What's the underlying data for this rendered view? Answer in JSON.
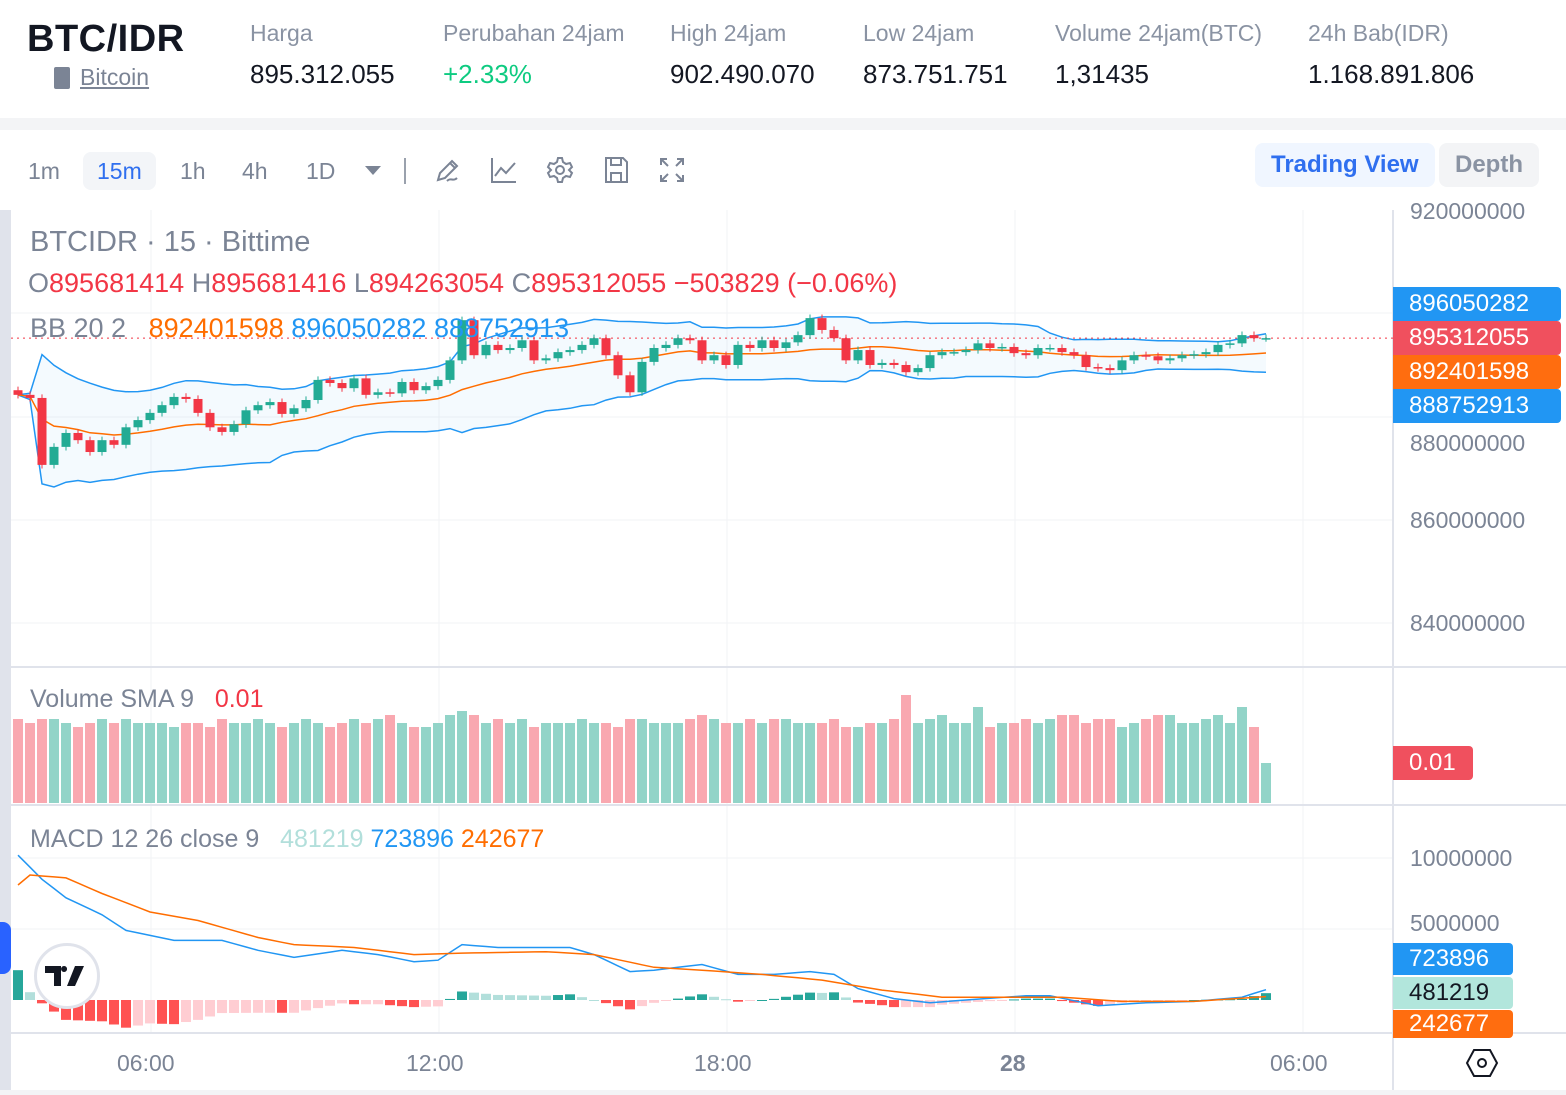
{
  "header": {
    "pair": "BTC/IDR",
    "coin_link": "Bitcoin",
    "stats": [
      {
        "label": "Harga",
        "value": "895.312.055"
      },
      {
        "label": "Perubahan 24jam",
        "value": "+2.33%"
      },
      {
        "label": "High 24jam",
        "value": "902.490.070"
      },
      {
        "label": "Low 24jam",
        "value": "873.751.751"
      },
      {
        "label": "Volume 24jam(BTC)",
        "value": "1,31435"
      },
      {
        "label": "24h Bab(IDR)",
        "value": "1.168.891.806"
      }
    ]
  },
  "toolbar": {
    "timeframes": [
      "1m",
      "15m",
      "1h",
      "4h",
      "1D"
    ],
    "active_timeframe": "15m",
    "icons": [
      "pencil-icon",
      "indicator-chart-icon",
      "gear-icon",
      "save-icon",
      "fullscreen-icon"
    ],
    "views": [
      "Trading View",
      "Depth"
    ],
    "active_view": "Trading View"
  },
  "legend": {
    "symbol": "BTCIDR · 15 · Bittime",
    "ohlc": {
      "o_label": "O",
      "o": "895681414",
      "h_label": "H",
      "h": "895681416",
      "l_label": "L",
      "l": "894263054",
      "c_label": "C",
      "c": "895312055",
      "change": "−503829 (−0.06%)"
    },
    "bb": {
      "label": "BB 20 2",
      "basis": "892401598",
      "upper": "896050282",
      "lower": "888752913"
    },
    "volume": {
      "label": "Volume SMA 9",
      "value": "0.01"
    },
    "macd": {
      "label": "MACD 12 26 close 9",
      "hist": "481219",
      "macd": "723896",
      "signal": "242677"
    }
  },
  "price_axis": {
    "ticks": [
      "920000000",
      "880000000",
      "860000000",
      "840000000"
    ],
    "labels": {
      "upper": "896050282",
      "last": "895312055",
      "basis": "892401598",
      "lower": "888752913"
    },
    "volume_label": "0.01",
    "macd_ticks": [
      "10000000",
      "5000000"
    ],
    "macd_labels": {
      "macd": "723896",
      "hist": "481219",
      "signal": "242677"
    }
  },
  "time_axis": {
    "ticks": [
      "06:00",
      "12:00",
      "18:00",
      "28",
      "06:00"
    ]
  },
  "colors": {
    "up": "#22ab94",
    "down": "#f23645",
    "bb": "#2196f3",
    "basis": "#ff6d00",
    "accent": "#2f6fef",
    "positive": "#0ecb81"
  },
  "chart_data": {
    "type": "candlestick",
    "interval": "15m",
    "ylim": [
      835000000,
      922000000
    ],
    "first_open": 885200000,
    "close": [
      884300000,
      883700000,
      870700000,
      874200000,
      876900000,
      875500000,
      873200000,
      875500000,
      874600000,
      878000000,
      879400000,
      880800000,
      882300000,
      883900000,
      883500000,
      880800000,
      878000000,
      877100000,
      878600000,
      881300000,
      882300000,
      882900000,
      880600000,
      881700000,
      883300000,
      887200000,
      886600000,
      885600000,
      887500000,
      884300000,
      884800000,
      884600000,
      886800000,
      885200000,
      886000000,
      887200000,
      891000000,
      898800000,
      892000000,
      894000000,
      893000000,
      893400000,
      894900000,
      891000000,
      891400000,
      892600000,
      893000000,
      894000000,
      895300000,
      892000000,
      888100000,
      884800000,
      890700000,
      893400000,
      894000000,
      895300000,
      894900000,
      891000000,
      892000000,
      890100000,
      894000000,
      893400000,
      894900000,
      893400000,
      894500000,
      895900000,
      899200000,
      896900000,
      895300000,
      891000000,
      893000000,
      890100000,
      890500000,
      890100000,
      888700000,
      889500000,
      892000000,
      892600000,
      892600000,
      893000000,
      894300000,
      893400000,
      893600000,
      892400000,
      892000000,
      893400000,
      893400000,
      892600000,
      892000000,
      889700000,
      889500000,
      889100000,
      891000000,
      892000000,
      891800000,
      891000000,
      891400000,
      892000000,
      892200000,
      892600000,
      894000000,
      894300000,
      895900000,
      895300000,
      895312055
    ],
    "volume": [
      0.021,
      0.02,
      0.021,
      0.021,
      0.02,
      0.019,
      0.02,
      0.021,
      0.02,
      0.021,
      0.02,
      0.02,
      0.02,
      0.019,
      0.02,
      0.02,
      0.019,
      0.021,
      0.02,
      0.02,
      0.021,
      0.02,
      0.019,
      0.02,
      0.021,
      0.02,
      0.019,
      0.02,
      0.021,
      0.02,
      0.021,
      0.022,
      0.02,
      0.019,
      0.019,
      0.02,
      0.022,
      0.023,
      0.022,
      0.02,
      0.021,
      0.02,
      0.021,
      0.019,
      0.02,
      0.02,
      0.02,
      0.021,
      0.02,
      0.02,
      0.019,
      0.021,
      0.021,
      0.02,
      0.02,
      0.02,
      0.021,
      0.022,
      0.021,
      0.02,
      0.02,
      0.021,
      0.02,
      0.021,
      0.021,
      0.02,
      0.02,
      0.02,
      0.021,
      0.019,
      0.019,
      0.02,
      0.02,
      0.021,
      0.027,
      0.02,
      0.021,
      0.022,
      0.02,
      0.02,
      0.024,
      0.019,
      0.02,
      0.02,
      0.021,
      0.02,
      0.021,
      0.022,
      0.022,
      0.02,
      0.021,
      0.021,
      0.019,
      0.02,
      0.021,
      0.022,
      0.022,
      0.02,
      0.02,
      0.021,
      0.022,
      0.02,
      0.024,
      0.019,
      0.01
    ],
    "macd": {
      "ylim": [
        -1500000,
        11000000
      ],
      "macd_line": [
        [
          0,
          10200000
        ],
        [
          2,
          8500000
        ],
        [
          4,
          7200000
        ],
        [
          7,
          6000000
        ],
        [
          9,
          4900000
        ],
        [
          13,
          4200000
        ],
        [
          17,
          4200000
        ],
        [
          20,
          3500000
        ],
        [
          23,
          3000000
        ],
        [
          27,
          3500000
        ],
        [
          30,
          3200000
        ],
        [
          33,
          2700000
        ],
        [
          35,
          2800000
        ],
        [
          37,
          3900000
        ],
        [
          40,
          3700000
        ],
        [
          46,
          3700000
        ],
        [
          48,
          3200000
        ],
        [
          51,
          2000000
        ],
        [
          53,
          2100000
        ],
        [
          57,
          2500000
        ],
        [
          60,
          1800000
        ],
        [
          63,
          1800000
        ],
        [
          66,
          2000000
        ],
        [
          68,
          1800000
        ],
        [
          70,
          800000
        ],
        [
          73,
          100000
        ],
        [
          76,
          -200000
        ],
        [
          79,
          0
        ],
        [
          84,
          300000
        ],
        [
          86,
          300000
        ],
        [
          90,
          -400000
        ],
        [
          94,
          -200000
        ],
        [
          98,
          -100000
        ],
        [
          102,
          200000
        ],
        [
          104,
          723896
        ]
      ],
      "signal_line": [
        [
          0,
          8100000
        ],
        [
          1,
          8800000
        ],
        [
          4,
          8600000
        ],
        [
          7,
          7500000
        ],
        [
          11,
          6200000
        ],
        [
          15,
          5600000
        ],
        [
          20,
          4400000
        ],
        [
          23,
          3900000
        ],
        [
          28,
          3700000
        ],
        [
          33,
          3200000
        ],
        [
          37,
          3300000
        ],
        [
          44,
          3400000
        ],
        [
          48,
          3200000
        ],
        [
          53,
          2300000
        ],
        [
          57,
          2100000
        ],
        [
          62,
          1800000
        ],
        [
          67,
          1400000
        ],
        [
          72,
          700000
        ],
        [
          77,
          200000
        ],
        [
          82,
          200000
        ],
        [
          87,
          200000
        ],
        [
          92,
          -100000
        ],
        [
          98,
          -100000
        ],
        [
          104,
          242677
        ]
      ]
    }
  }
}
